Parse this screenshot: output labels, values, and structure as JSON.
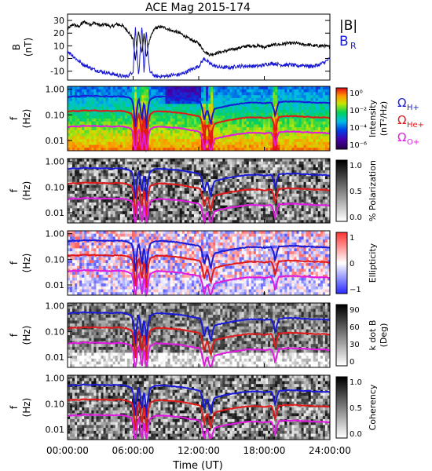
{
  "chart_data": {
    "title": "ACE Mag 2015-174",
    "xlabel": "Time (UT)",
    "x_ticks": [
      "00:00:00",
      "06:00:00",
      "12:00:00",
      "18:00:00",
      "24:00:00"
    ],
    "x_range_hours": [
      0,
      24
    ],
    "panels": [
      {
        "type": "line",
        "ylabel": [
          "B",
          "(nT)"
        ],
        "y_ticks": [
          "30",
          "20",
          "10",
          "0",
          "-10"
        ],
        "y_tick_values": [
          30,
          20,
          10,
          0,
          -10
        ],
        "ylim": [
          -17,
          35
        ],
        "series": [
          {
            "name": "|B|",
            "color": "#000000",
            "x": [
              0,
              0.5,
              1,
              1.5,
              2,
              2.5,
              3,
              3.5,
              4,
              4.5,
              5,
              5.5,
              6,
              6.2,
              6.5,
              6.8,
              7,
              7.2,
              7.5,
              8,
              8.5,
              9,
              9.5,
              10,
              10.5,
              11,
              11.5,
              12,
              12.5,
              13,
              13.5,
              14,
              14.5,
              15,
              15.5,
              16,
              16.5,
              17,
              17.5,
              18,
              18.5,
              19,
              19.5,
              20,
              20.5,
              21,
              21.5,
              22,
              22.5,
              23,
              23.5,
              24
            ],
            "y": [
              23,
              27,
              25,
              29,
              27,
              28,
              26,
              27,
              25,
              27,
              26,
              22,
              15,
              -2,
              22,
              4,
              20,
              1,
              15,
              24,
              25,
              24,
              22,
              21,
              19,
              16,
              14,
              12,
              6,
              3,
              4,
              5,
              6,
              7,
              8,
              9,
              10,
              10,
              10,
              9,
              10,
              11,
              11,
              12,
              12,
              12,
              11,
              11,
              10,
              10,
              10,
              9
            ]
          },
          {
            "name": "B_R",
            "color": "#1a1ad6",
            "x": [
              0,
              0.5,
              1,
              1.5,
              2,
              2.5,
              3,
              3.5,
              4,
              4.5,
              5,
              5.5,
              6,
              6.2,
              6.5,
              6.8,
              7,
              7.2,
              7.5,
              8,
              8.5,
              9,
              9.5,
              10,
              10.5,
              11,
              11.5,
              12,
              12.5,
              13,
              13.5,
              14,
              14.5,
              15,
              15.5,
              16,
              16.5,
              17,
              17.5,
              18,
              18.5,
              19,
              19.5,
              20,
              20.5,
              21,
              21.5,
              22,
              22.5,
              23,
              23.5,
              24
            ],
            "y": [
              6,
              2,
              -2,
              -5,
              -7,
              -9,
              -10,
              -11,
              -12,
              -13,
              -14,
              -14,
              -10,
              25,
              -14,
              25,
              -13,
              22,
              -10,
              -14,
              -14,
              -14,
              -13,
              -13,
              -12,
              -10,
              -8,
              -6,
              0,
              -4,
              -6,
              -7,
              -7,
              -7,
              -6,
              -6,
              -6,
              -6,
              -6,
              -5,
              -4,
              -4,
              -5,
              -5,
              -5,
              -6,
              -5,
              -6,
              -6,
              -5,
              -3,
              0
            ]
          }
        ],
        "legend": {
          "labels": [
            "|B|",
            "B",
            "R"
          ],
          "placement": "right"
        }
      },
      {
        "type": "heatmap",
        "ylabel": [
          "f",
          "(Hz)"
        ],
        "y_ticks": [
          "1.00",
          "0.10",
          "0.01"
        ],
        "colorbar": {
          "label": [
            "Intensity",
            "(nT²/Hz)"
          ],
          "ticks": [
            "10⁰",
            "10⁻²",
            "10⁻⁴",
            "10⁻⁶"
          ],
          "colormap": "rainbow"
        },
        "legend": {
          "labels": [
            "Ω",
            "H+",
            "Ω",
            "He+",
            "Ω",
            "O+"
          ]
        }
      },
      {
        "type": "heatmap",
        "ylabel": [
          "f",
          "(Hz)"
        ],
        "y_ticks": [
          "1.00",
          "0.10",
          "0.01"
        ],
        "colorbar": {
          "label": [
            "% Polarization"
          ],
          "ticks": [
            "1.0",
            "0.5",
            "0.0"
          ],
          "colormap": "grayscale"
        }
      },
      {
        "type": "heatmap",
        "ylabel": [
          "f",
          "(Hz)"
        ],
        "y_ticks": [
          "1.00",
          "0.10",
          "0.01"
        ],
        "colorbar": {
          "label": [
            "Ellipticity"
          ],
          "ticks": [
            "1",
            "0",
            "−1"
          ],
          "colormap": "blue-white-red"
        }
      },
      {
        "type": "heatmap",
        "ylabel": [
          "f",
          "(Hz)"
        ],
        "y_ticks": [
          "1.00",
          "0.10",
          "0.01"
        ],
        "colorbar": {
          "label": [
            "k dot B",
            "(Deg)"
          ],
          "ticks": [
            "90",
            "60",
            "30",
            "0"
          ],
          "colormap": "grayscale"
        }
      },
      {
        "type": "heatmap",
        "ylabel": [
          "f",
          "(Hz)"
        ],
        "y_ticks": [
          "1.00",
          "0.10",
          "0.01"
        ],
        "colorbar": {
          "label": [
            "Coherency"
          ],
          "ticks": [
            "1.0",
            "0.5",
            "0.0"
          ],
          "colormap": "grayscale"
        }
      }
    ],
    "gyrofrequency_lines": [
      {
        "name": "H+",
        "color": "#1a1ad6",
        "f_nominal_hz": 0.3
      },
      {
        "name": "He+",
        "color": "#e01a1a",
        "f_nominal_hz": 0.08
      },
      {
        "name": "O+",
        "color": "#e01ae0",
        "f_nominal_hz": 0.02
      }
    ],
    "dip_hours": [
      6.2,
      6.8,
      7.2,
      12.5,
      13.1,
      19.0
    ]
  }
}
